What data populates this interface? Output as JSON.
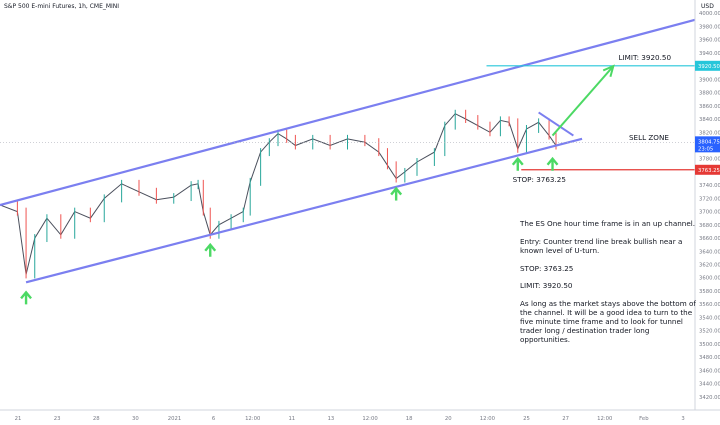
{
  "header": {
    "title": "S&P 500 E-mini Futures, 1h, CME_MINI",
    "currency": "USD"
  },
  "chart_data": {
    "type": "line",
    "style": "candlestick",
    "symbol": "S&P 500 E-mini Futures",
    "timeframe": "1h",
    "exchange": "CME_MINI",
    "ylim": [
      3400,
      4020
    ],
    "y_ticks": [
      4000,
      3980,
      3960,
      3940,
      3920,
      3900,
      3880,
      3860,
      3840,
      3820,
      3800,
      3780,
      3760,
      3740,
      3720,
      3700,
      3680,
      3660,
      3640,
      3620,
      3600,
      3580,
      3560,
      3540,
      3520,
      3500,
      3480,
      3460,
      3440,
      3420
    ],
    "x_ticks": [
      "21",
      "23",
      "28",
      "30",
      "2021",
      "6",
      "12:00",
      "11",
      "13",
      "12:00",
      "18",
      "20",
      "12:00",
      "25",
      "27",
      "12:00",
      "Feb",
      "3"
    ],
    "price_series": [
      {
        "x": 0.0,
        "y": 3710
      },
      {
        "x": 1.0,
        "y": 3700
      },
      {
        "x": 1.5,
        "y": 3605
      },
      {
        "x": 2.0,
        "y": 3660
      },
      {
        "x": 2.7,
        "y": 3690
      },
      {
        "x": 3.5,
        "y": 3665
      },
      {
        "x": 4.3,
        "y": 3700
      },
      {
        "x": 5.2,
        "y": 3690
      },
      {
        "x": 6.0,
        "y": 3720
      },
      {
        "x": 7.0,
        "y": 3742
      },
      {
        "x": 8.0,
        "y": 3730
      },
      {
        "x": 9.0,
        "y": 3718
      },
      {
        "x": 10.0,
        "y": 3722
      },
      {
        "x": 11.0,
        "y": 3740
      },
      {
        "x": 11.4,
        "y": 3742
      },
      {
        "x": 11.7,
        "y": 3700
      },
      {
        "x": 12.1,
        "y": 3665
      },
      {
        "x": 12.6,
        "y": 3680
      },
      {
        "x": 13.3,
        "y": 3690
      },
      {
        "x": 14.0,
        "y": 3700
      },
      {
        "x": 14.4,
        "y": 3745
      },
      {
        "x": 15.0,
        "y": 3790
      },
      {
        "x": 15.5,
        "y": 3805
      },
      {
        "x": 16.0,
        "y": 3818
      },
      {
        "x": 16.5,
        "y": 3810
      },
      {
        "x": 17.0,
        "y": 3800
      },
      {
        "x": 18.0,
        "y": 3810
      },
      {
        "x": 19.0,
        "y": 3800
      },
      {
        "x": 20.0,
        "y": 3810
      },
      {
        "x": 21.0,
        "y": 3805
      },
      {
        "x": 21.8,
        "y": 3790
      },
      {
        "x": 22.3,
        "y": 3770
      },
      {
        "x": 22.8,
        "y": 3750
      },
      {
        "x": 23.3,
        "y": 3760
      },
      {
        "x": 24.0,
        "y": 3775
      },
      {
        "x": 25.0,
        "y": 3790
      },
      {
        "x": 25.6,
        "y": 3830
      },
      {
        "x": 26.2,
        "y": 3848
      },
      {
        "x": 26.8,
        "y": 3840
      },
      {
        "x": 27.5,
        "y": 3830
      },
      {
        "x": 28.2,
        "y": 3820
      },
      {
        "x": 28.8,
        "y": 3838
      },
      {
        "x": 29.3,
        "y": 3835
      },
      {
        "x": 29.8,
        "y": 3795
      },
      {
        "x": 30.3,
        "y": 3825
      },
      {
        "x": 31.0,
        "y": 3835
      },
      {
        "x": 31.6,
        "y": 3815
      },
      {
        "x": 32.0,
        "y": 3800
      }
    ],
    "channel": {
      "upper": [
        {
          "x": 0.0,
          "y": 3710
        },
        {
          "x": 40.0,
          "y": 3990
        }
      ],
      "lower": [
        {
          "x": 1.5,
          "y": 3593
        },
        {
          "x": 33.5,
          "y": 3810
        }
      ],
      "color": "#7b7ff0"
    },
    "trendline_break": [
      {
        "x": 31.0,
        "y": 3850
      },
      {
        "x": 33.0,
        "y": 3815
      }
    ],
    "projection_arrow": [
      {
        "x": 31.8,
        "y": 3815
      },
      {
        "x": 35.3,
        "y": 3920
      }
    ],
    "levels": [
      {
        "name": "LIMIT",
        "value": 3920.5,
        "label": "LIMIT: 3920.50",
        "color": "#26c6da",
        "badge": "3920.50"
      },
      {
        "name": "STOP",
        "value": 3763.25,
        "label": "STOP: 3763.25",
        "color": "#e53935",
        "badge": "3763.25"
      }
    ],
    "last_price": {
      "value": 3804.75,
      "label": "3804.75",
      "sub": "23:05",
      "color": "#2962ff"
    },
    "zones": [
      {
        "label": "SELL ZONE",
        "y": 3805
      }
    ],
    "arrows_up": [
      {
        "x": 1.5,
        "y": 3593
      },
      {
        "x": 12.1,
        "y": 3665
      },
      {
        "x": 22.8,
        "y": 3750
      },
      {
        "x": 29.8,
        "y": 3795
      },
      {
        "x": 31.8,
        "y": 3795
      }
    ],
    "arrow_color": "#4cd964",
    "grid": false
  },
  "notes": [
    "The ES One hour time frame is in an up channel.",
    "Entry: Counter trend line break bullish near a known level of U-turn.",
    "STOP: 3763.25",
    "LIMIT: 3920.50",
    "As long as the market stays above the bottom of the channel. It will be a good idea to turn to the five minute time frame and to look for tunnel trader long / destination trader long opportunities."
  ]
}
